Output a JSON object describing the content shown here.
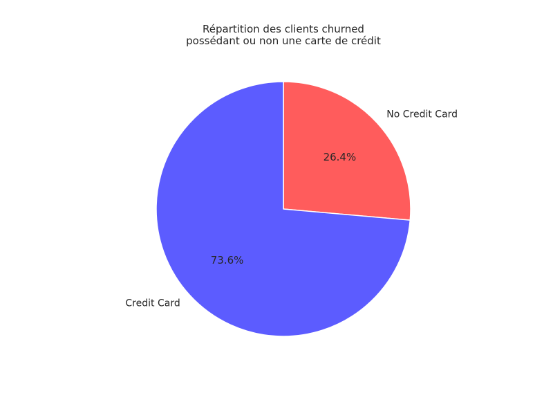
{
  "chart_data": {
    "type": "pie",
    "title_lines": [
      "Répartition des clients churned",
      "possédant ou non une carte de crédit"
    ],
    "slices": [
      {
        "label": "No Credit Card",
        "value": 26.4,
        "pct_label": "26.4%",
        "color": "#ff5c5c"
      },
      {
        "label": "Credit Card",
        "value": 73.6,
        "pct_label": "73.6%",
        "color": "#5c5cff"
      }
    ],
    "start_angle_deg": 90,
    "direction": "clockwise",
    "edge_color": "#ffffff"
  }
}
